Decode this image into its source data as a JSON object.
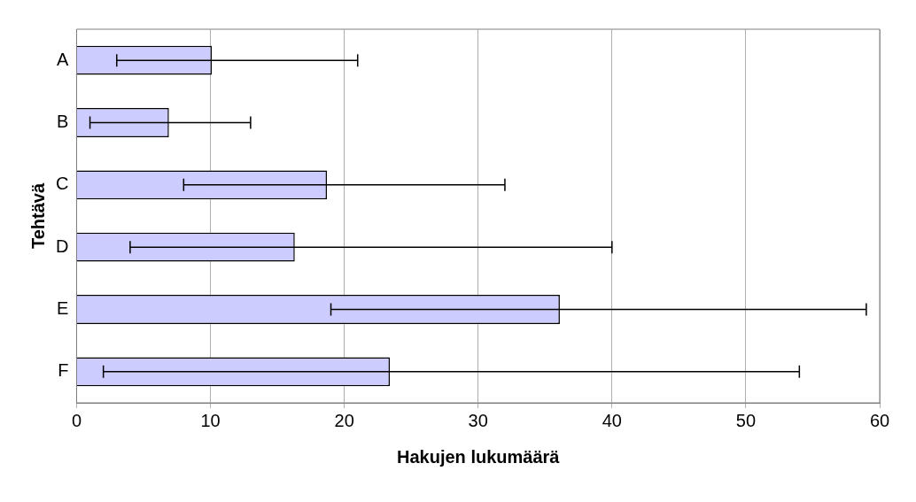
{
  "chart_data": {
    "type": "bar",
    "orientation": "horizontal",
    "xlabel": "Hakujen lukumäärä",
    "ylabel": "Tehtävä",
    "categories": [
      "A",
      "B",
      "C",
      "D",
      "E",
      "F"
    ],
    "values": [
      10.1,
      6.9,
      18.7,
      16.3,
      36.1,
      23.4
    ],
    "errors": [
      [
        3,
        21
      ],
      [
        1,
        13
      ],
      [
        8,
        32
      ],
      [
        4,
        40
      ],
      [
        19,
        59
      ],
      [
        2,
        54
      ]
    ],
    "color": "#ccccff",
    "xlim": [
      0,
      60
    ],
    "xticks": [
      0,
      10,
      20,
      30,
      40,
      50,
      60
    ],
    "grid": "x",
    "legend": false
  }
}
